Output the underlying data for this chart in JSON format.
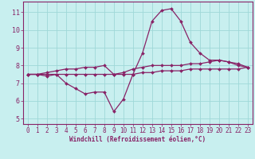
{
  "xlabel": "Windchill (Refroidissement éolien,°C)",
  "bg_color": "#c8efef",
  "grid_color": "#9fd8d8",
  "line_color": "#882266",
  "xlim_min": -0.5,
  "xlim_max": 23.5,
  "ylim_min": 4.7,
  "ylim_max": 11.6,
  "yticks": [
    5,
    6,
    7,
    8,
    9,
    10,
    11
  ],
  "xticks": [
    0,
    1,
    2,
    3,
    4,
    5,
    6,
    7,
    8,
    9,
    10,
    11,
    12,
    13,
    14,
    15,
    16,
    17,
    18,
    19,
    20,
    21,
    22,
    23
  ],
  "line1_x": [
    0,
    1,
    2,
    3,
    4,
    5,
    6,
    7,
    8,
    9,
    10,
    11,
    12,
    13,
    14,
    15,
    16,
    17,
    18,
    19,
    20,
    21,
    22,
    23
  ],
  "line1_y": [
    7.5,
    7.5,
    7.4,
    7.5,
    7.0,
    6.7,
    6.4,
    6.5,
    6.5,
    5.4,
    6.1,
    7.5,
    8.7,
    10.5,
    11.1,
    11.2,
    10.5,
    9.3,
    8.7,
    8.3,
    8.3,
    8.2,
    8.0,
    7.9
  ],
  "line2_x": [
    0,
    1,
    2,
    3,
    4,
    5,
    6,
    7,
    8,
    9,
    10,
    11,
    12,
    13,
    14,
    15,
    16,
    17,
    18,
    19,
    20,
    21,
    22,
    23
  ],
  "line2_y": [
    7.5,
    7.5,
    7.6,
    7.7,
    7.8,
    7.8,
    7.9,
    7.9,
    8.0,
    7.5,
    7.6,
    7.8,
    7.9,
    8.0,
    8.0,
    8.0,
    8.0,
    8.1,
    8.1,
    8.2,
    8.3,
    8.2,
    8.1,
    7.9
  ],
  "line3_x": [
    0,
    1,
    2,
    3,
    4,
    5,
    6,
    7,
    8,
    9,
    10,
    11,
    12,
    13,
    14,
    15,
    16,
    17,
    18,
    19,
    20,
    21,
    22,
    23
  ],
  "line3_y": [
    7.5,
    7.5,
    7.5,
    7.5,
    7.5,
    7.5,
    7.5,
    7.5,
    7.5,
    7.5,
    7.5,
    7.5,
    7.6,
    7.6,
    7.7,
    7.7,
    7.7,
    7.8,
    7.8,
    7.8,
    7.8,
    7.8,
    7.8,
    7.9
  ],
  "marker": "D",
  "markersize": 2.0,
  "linewidth": 0.9,
  "xlabel_fontsize": 5.5,
  "tick_fontsize": 5.5,
  "ytick_fontsize": 6.0
}
